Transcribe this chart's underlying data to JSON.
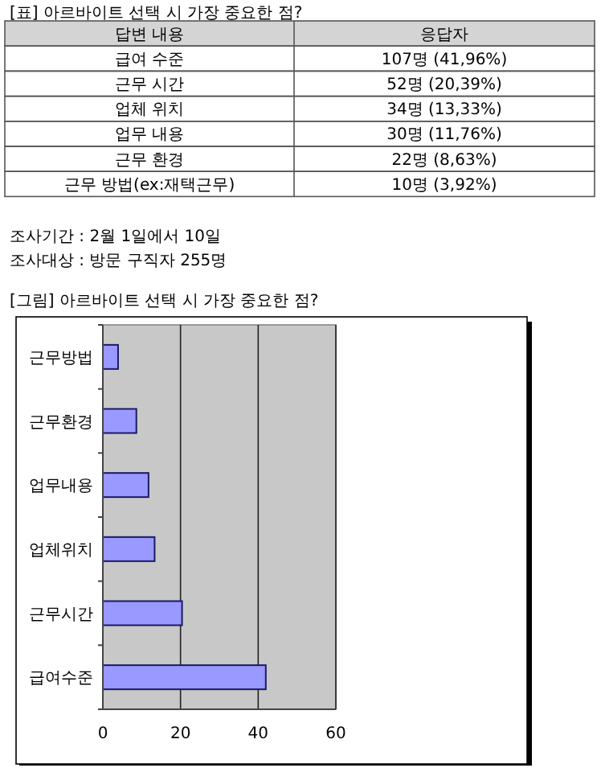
{
  "chart_data": {
    "type": "bar",
    "orientation": "horizontal",
    "title": "[그림] 아르바이트 선택 시 가장 중요한 점?",
    "categories": [
      "근무방법",
      "근무환경",
      "업무내용",
      "업체위치",
      "근무시간",
      "급여수준"
    ],
    "values": [
      3.92,
      8.63,
      11.76,
      13.33,
      20.39,
      41.96
    ],
    "color": "#9999ff",
    "xlim": [
      0,
      60
    ],
    "xticks": [
      0,
      20,
      40,
      60
    ],
    "grid": "x",
    "annotations": [
      "[표] 아르바이트 선택 시 가장 중요한 점?",
      "답변 내용",
      "응답자",
      "급여 수준",
      "107명 (41,96%)",
      "근무 시간",
      "52명 (20,39%)",
      "업체 위치",
      "34명 (13,33%)",
      "업무 내용",
      "30명 (11,76%)",
      "근무 환경",
      "22명 (8,63%)",
      "근무 방법(ex:재택근무)",
      "10명 (3,92%)",
      "조사기간 : 2월 1일에서 10일",
      "조사대상 : 방문 구직자 255명"
    ]
  }
}
